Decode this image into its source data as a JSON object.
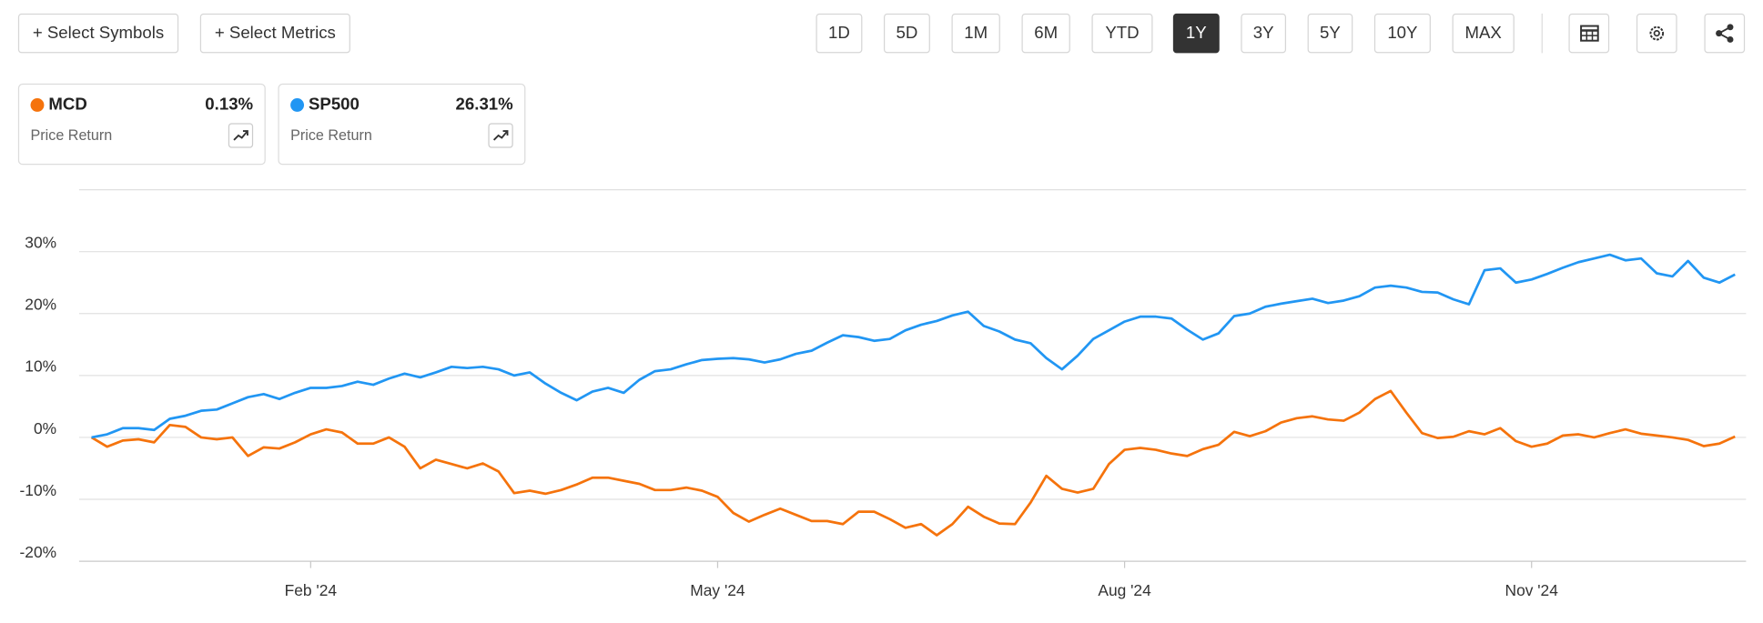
{
  "toolbar": {
    "buttons": [
      "+ Select Symbols",
      "+ Select Metrics"
    ],
    "ranges": [
      "1D",
      "5D",
      "1M",
      "6M",
      "YTD",
      "1Y",
      "3Y",
      "5Y",
      "10Y",
      "MAX"
    ],
    "active_range": 5
  },
  "chart_data": {
    "type": "line",
    "categories": [
      null,
      null,
      null,
      null,
      null,
      null,
      null,
      null,
      null,
      null,
      null,
      null,
      null,
      null,
      "Feb '24",
      null,
      null,
      null,
      null,
      null,
      null,
      null,
      null,
      null,
      null,
      null,
      null,
      null,
      null,
      null,
      null,
      null,
      null,
      null,
      null,
      null,
      null,
      null,
      null,
      null,
      "May '24",
      null,
      null,
      null,
      null,
      null,
      null,
      null,
      null,
      null,
      null,
      null,
      null,
      null,
      null,
      null,
      null,
      null,
      null,
      null,
      null,
      null,
      null,
      null,
      null,
      null,
      "Aug '24",
      null,
      null,
      null,
      null,
      null,
      null,
      null,
      null,
      null,
      null,
      null,
      null,
      null,
      null,
      null,
      null,
      null,
      null,
      null,
      null,
      null,
      null,
      null,
      null,
      null,
      "Nov '24",
      null,
      null,
      null,
      null,
      null,
      null,
      null,
      null,
      null,
      null,
      null,
      null,
      null
    ],
    "series": [
      {
        "name": "MCD",
        "color": "#f5730c",
        "return_label": "0.13%",
        "metric": "Price Return",
        "values": [
          0,
          -1.5,
          -0.5,
          -0.3,
          -0.8,
          2,
          1.7,
          0,
          -0.3,
          0,
          -3,
          -1.6,
          -1.8,
          -0.8,
          0.5,
          1.3,
          0.8,
          -1,
          -1,
          0,
          -1.5,
          -5,
          -3.6,
          -4.3,
          -5,
          -4.2,
          -5.5,
          -9,
          -8.6,
          -9.1,
          -8.5,
          -7.6,
          -6.5,
          -6.5,
          -7,
          -7.5,
          -8.5,
          -8.5,
          -8.1,
          -8.6,
          -9.6,
          -12.2,
          -13.6,
          -12.5,
          -11.5,
          -12.5,
          -13.5,
          -13.5,
          -14,
          -12,
          -12,
          -13.2,
          -14.6,
          -14,
          -15.8,
          -14,
          -11.2,
          -12.8,
          -13.9,
          -14,
          -10.5,
          -6.2,
          -8.3,
          -8.9,
          -8.3,
          -4.3,
          -2,
          -1.7,
          -2,
          -2.6,
          -3,
          -1.9,
          -1.2,
          0.9,
          0.2,
          1,
          2.4,
          3.1,
          3.4,
          2.9,
          2.7,
          4,
          6.2,
          7.5,
          4,
          0.7,
          -0.1,
          0.1,
          1,
          0.5,
          1.5,
          -0.6,
          -1.5,
          -1,
          0.3,
          0.5,
          0,
          0.7,
          1.3,
          0.6,
          0.3,
          0,
          -0.4,
          -1.4,
          -1,
          0.13
        ]
      },
      {
        "name": "SP500",
        "color": "#2196f3",
        "return_label": "26.31%",
        "metric": "Price Return",
        "values": [
          0,
          0.5,
          1.5,
          1.5,
          1.2,
          3,
          3.5,
          4.3,
          4.5,
          5.5,
          6.5,
          7,
          6.2,
          7.2,
          8,
          8,
          8.3,
          9,
          8.5,
          9.5,
          10.3,
          9.7,
          10.5,
          11.4,
          11.2,
          11.4,
          11,
          10,
          10.5,
          8.7,
          7.2,
          6,
          7.4,
          8,
          7.2,
          9.3,
          10.7,
          11,
          11.8,
          12.5,
          12.7,
          12.8,
          12.6,
          12.1,
          12.6,
          13.5,
          14,
          15.3,
          16.5,
          16.2,
          15.6,
          15.9,
          17.3,
          18.2,
          18.8,
          19.7,
          20.3,
          18,
          17.1,
          15.8,
          15.2,
          12.8,
          11,
          13.2,
          15.9,
          17.3,
          18.7,
          19.5,
          19.5,
          19.2,
          17.4,
          15.8,
          16.8,
          19.6,
          20,
          21.1,
          21.6,
          22,
          22.4,
          21.7,
          22.1,
          22.8,
          24.2,
          24.5,
          24.2,
          23.5,
          23.4,
          22.3,
          21.5,
          27,
          27.3,
          25,
          25.5,
          26.4,
          27.4,
          28.3,
          28.9,
          29.5,
          28.6,
          28.9,
          26.5,
          26,
          28.5,
          25.8,
          25,
          26.31
        ]
      }
    ],
    "ylim": [
      -20,
      40
    ],
    "yticks": [
      {
        "value": -20,
        "label": "-20%"
      },
      {
        "value": -10,
        "label": "-10%"
      },
      {
        "value": 0,
        "label": "0%"
      },
      {
        "value": 10,
        "label": "10%"
      },
      {
        "value": 20,
        "label": "20%"
      },
      {
        "value": 30,
        "label": "30%"
      }
    ],
    "grid": true
  }
}
